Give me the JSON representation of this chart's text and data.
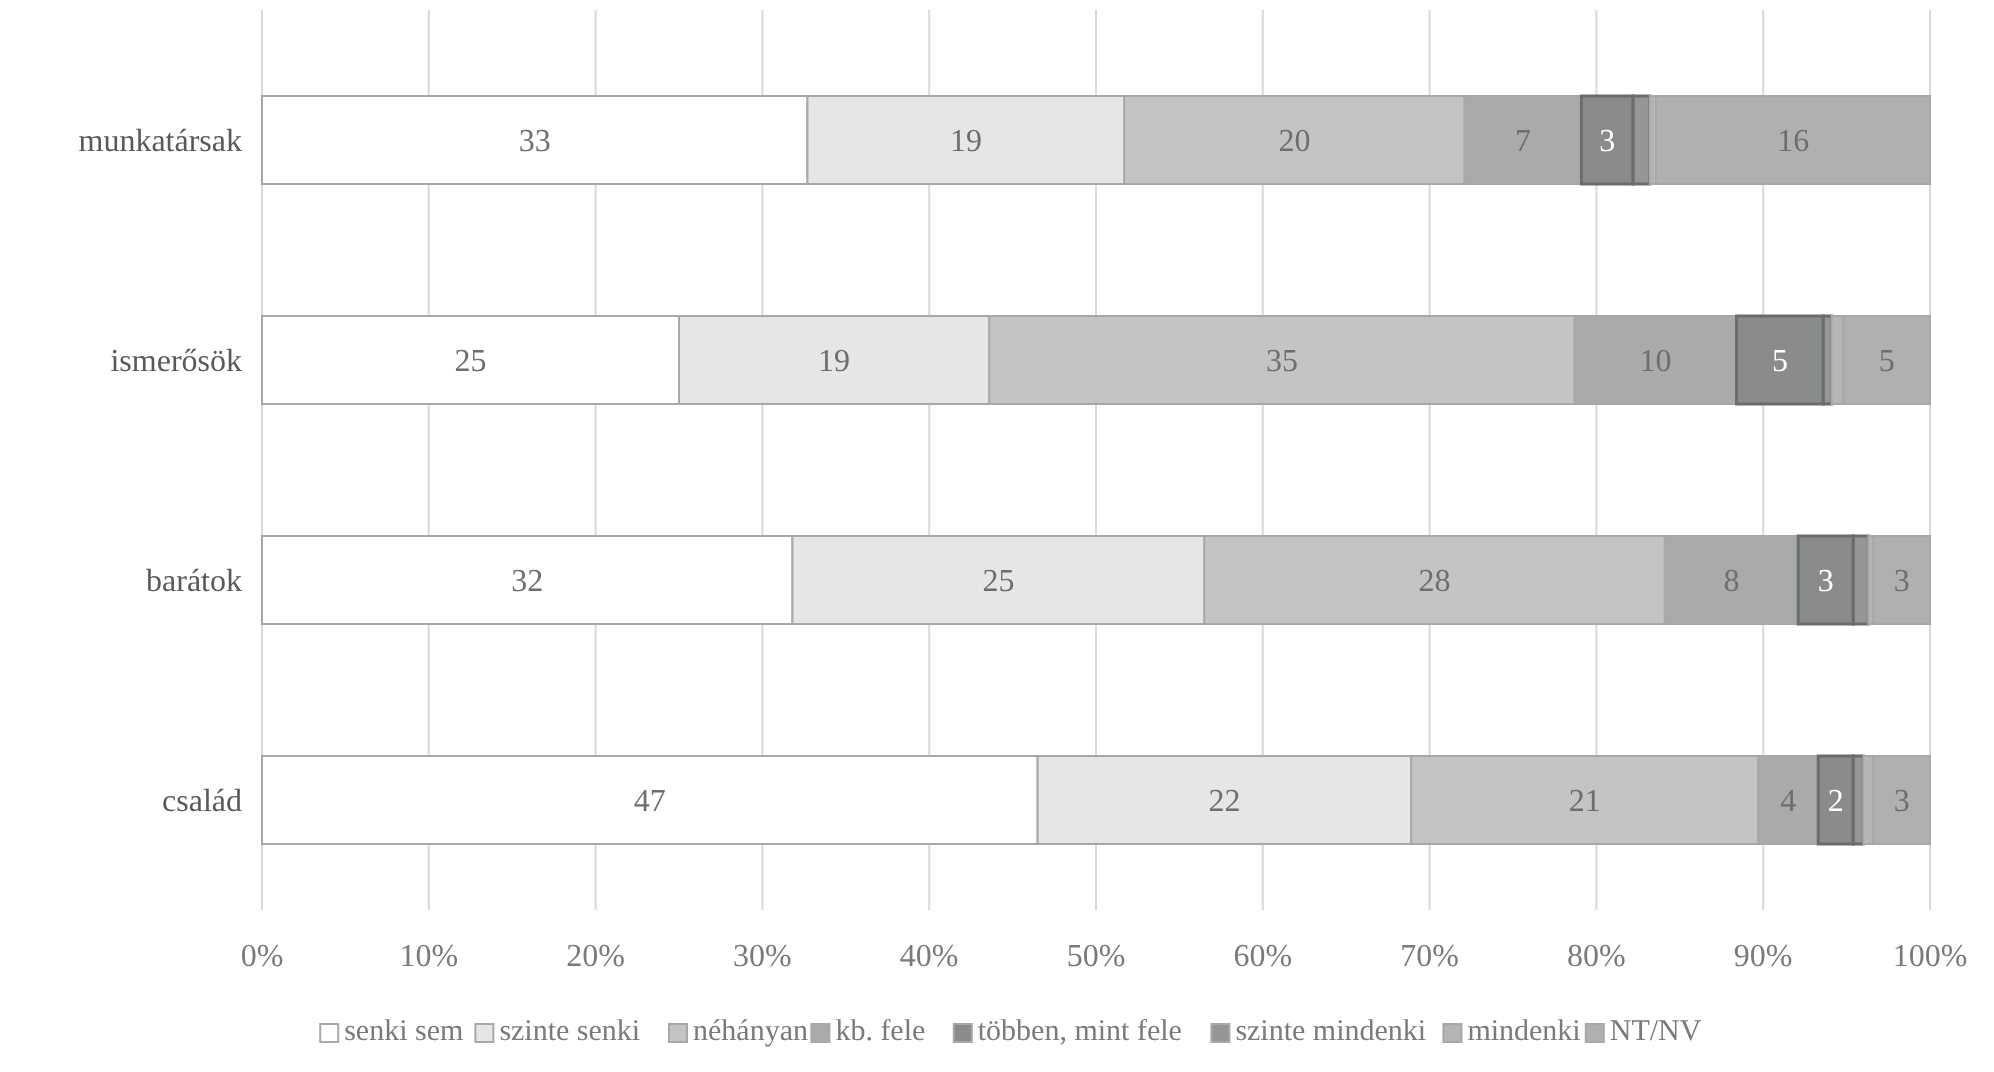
{
  "chart_data": {
    "type": "bar",
    "orientation": "horizontal",
    "stacked": true,
    "categories": [
      "munkatársak",
      "ismerősök",
      "barátok",
      "család"
    ],
    "xlim": [
      0,
      100
    ],
    "xticks": [
      {
        "value": 0,
        "label": "0%"
      },
      {
        "value": 10,
        "label": "10%"
      },
      {
        "value": 20,
        "label": "20%"
      },
      {
        "value": 30,
        "label": "30%"
      },
      {
        "value": 40,
        "label": "40%"
      },
      {
        "value": 50,
        "label": "50%"
      },
      {
        "value": 60,
        "label": "60%"
      },
      {
        "value": 70,
        "label": "70%"
      },
      {
        "value": 80,
        "label": "80%"
      },
      {
        "value": 90,
        "label": "90%"
      },
      {
        "value": 100,
        "label": "100%"
      }
    ],
    "grid": "x",
    "legend": "bottom",
    "series": [
      {
        "name": "senki sem",
        "color": "#ffffff",
        "values": [
          32.7,
          25,
          31.8,
          46.5
        ],
        "value_labels": [
          "33",
          "25",
          "32",
          "47"
        ]
      },
      {
        "name": "szinte senki",
        "color": "#e6e6e6",
        "values": [
          19,
          18.6,
          24.7,
          22.4
        ],
        "value_labels": [
          "19",
          "19",
          "25",
          "22"
        ]
      },
      {
        "name": "néhányan",
        "color": "#c3c4c4",
        "values": [
          20.4,
          35.1,
          27.6,
          20.8
        ],
        "value_labels": [
          "20",
          "35",
          "28",
          "21"
        ]
      },
      {
        "name": "kb. fele",
        "color": "#a9abab",
        "values": [
          7,
          9.7,
          8,
          3.6
        ],
        "value_labels": [
          "7",
          "10",
          "8",
          "4"
        ]
      },
      {
        "name": "többen, mint fele",
        "color": "#8a8c8c",
        "values": [
          3.1,
          5.2,
          3.3,
          2.1
        ],
        "value_labels": [
          "3",
          "5",
          "3",
          "2"
        ]
      },
      {
        "name": "szinte mindenki",
        "color": "#959797",
        "values": [
          1,
          0.5,
          0.9,
          0.6
        ],
        "value_labels": [
          null,
          null,
          null,
          null
        ]
      },
      {
        "name": "mindenki",
        "color": "#b4b6b6",
        "values": [
          0.4,
          0.7,
          0.3,
          0.6
        ],
        "value_labels": [
          null,
          null,
          null,
          null
        ]
      },
      {
        "name": "NT/NV",
        "color": "#afb1b1",
        "values": [
          16.4,
          5.2,
          3.4,
          3.4
        ],
        "value_labels": [
          "16",
          "5",
          "3",
          "3"
        ]
      }
    ]
  }
}
